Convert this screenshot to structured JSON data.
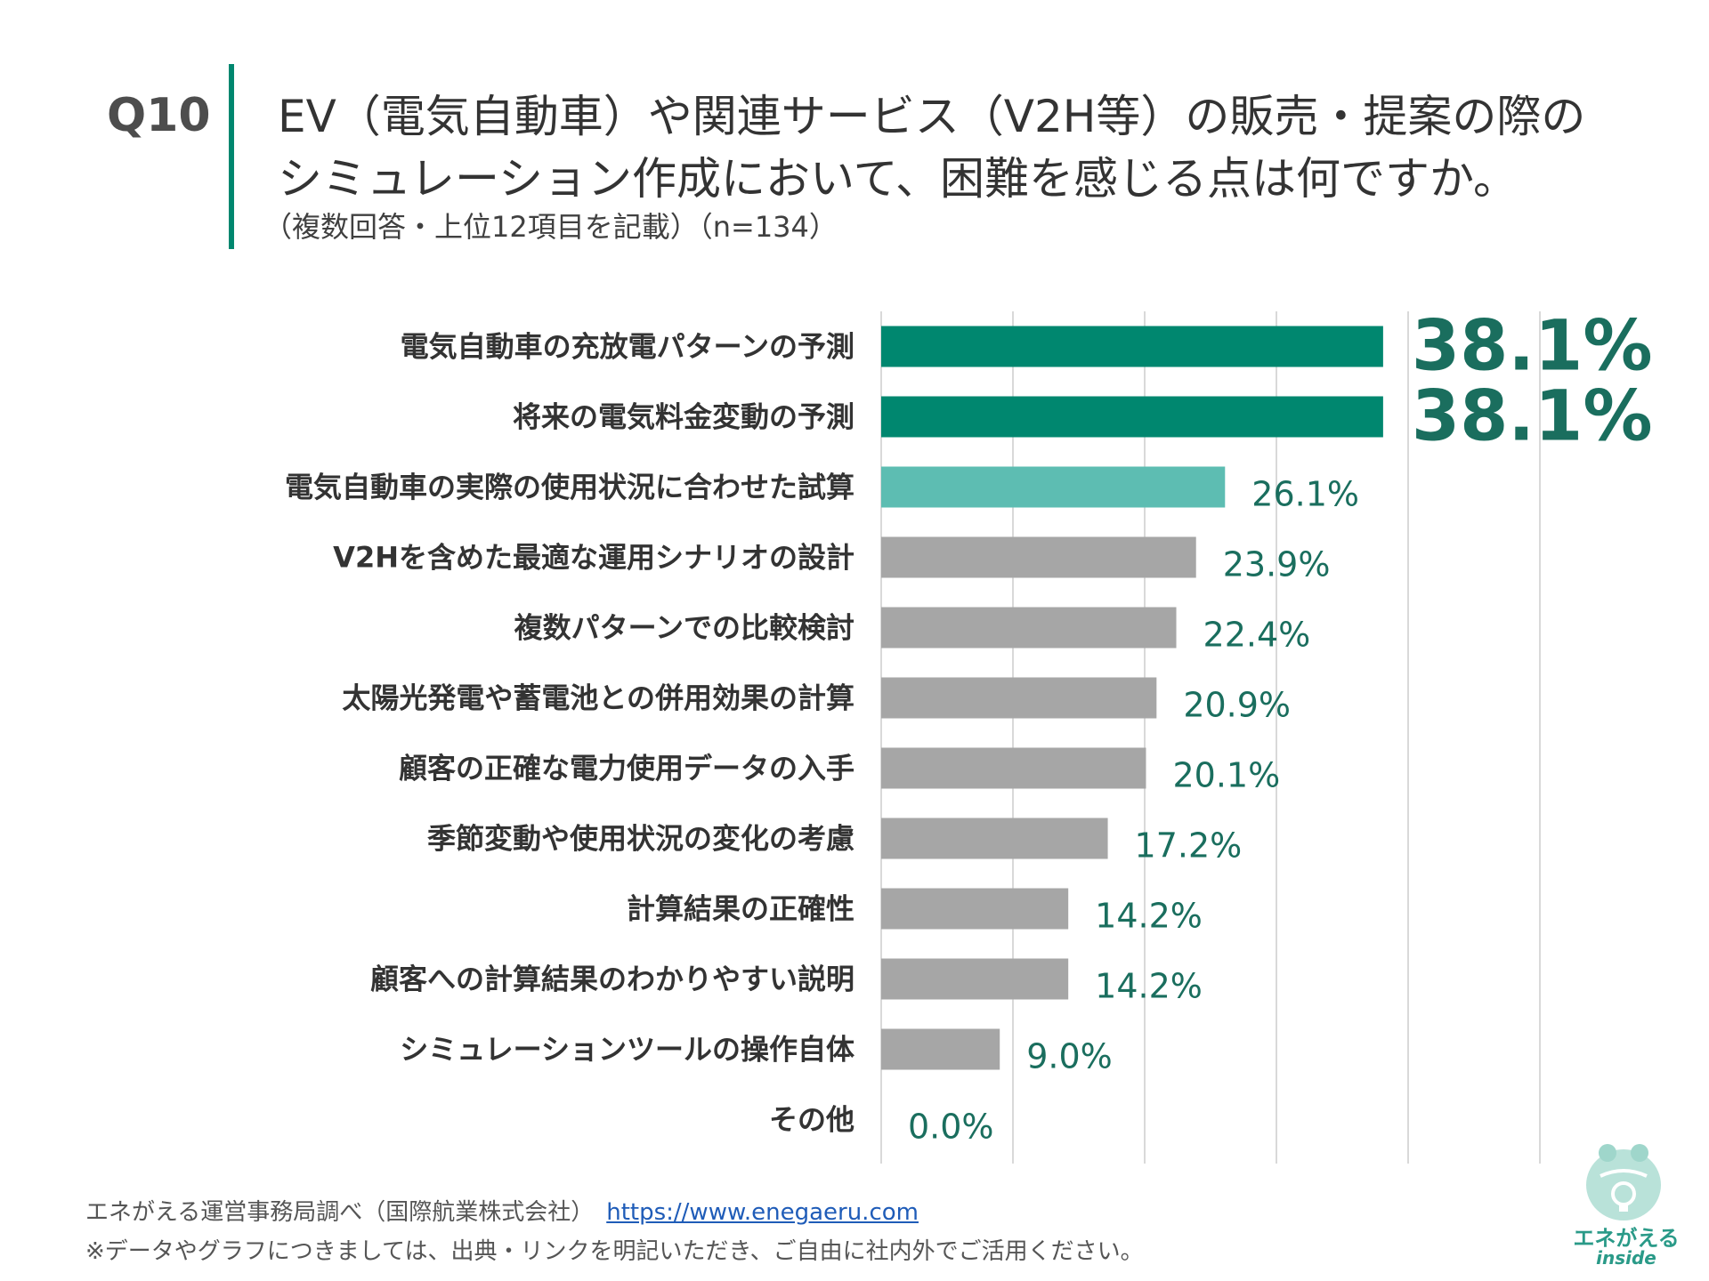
{
  "question": {
    "number": "Q10",
    "title_line1": "EV（電気自動車）や関連サービス（V2H等）の販売・提案の際の",
    "title_line2": "シミュレーション作成において、困難を感じる点は何ですか。",
    "subtitle": "（複数回答・上位12項目を記載）（n=134）"
  },
  "chart_data": {
    "type": "bar",
    "orientation": "horizontal",
    "categories": [
      "電気自動車の充放電パターンの予測",
      "将来の電気料金変動の予測",
      "電気自動車の実際の使用状況に合わせた試算",
      "V2Hを含めた最適な運用シナリオの設計",
      "複数パターンでの比較検討",
      "太陽光発電や蓄電池との併用効果の計算",
      "顧客の正確な電力使用データの入手",
      "季節変動や使用状況の変化の考慮",
      "計算結果の正確性",
      "顧客への計算結果のわかりやすい説明",
      "シミュレーションツールの操作自体",
      "その他"
    ],
    "values": [
      38.1,
      38.1,
      26.1,
      23.9,
      22.4,
      20.9,
      20.1,
      17.2,
      14.2,
      14.2,
      9.0,
      0.0
    ],
    "value_labels": [
      "38.1%",
      "38.1%",
      "26.1%",
      "23.9%",
      "22.4%",
      "20.9%",
      "20.1%",
      "17.2%",
      "14.2%",
      "14.2%",
      "9.0%",
      "0.0%"
    ],
    "xlim": [
      0,
      50
    ],
    "grid": true,
    "colors": {
      "top": "#00876f",
      "second": "#5dbdb2",
      "other": "#a6a6a6",
      "label": "#1a6e5e",
      "gridline": "#d9d9d9"
    }
  },
  "footer": {
    "source": "エネがえる運営事務局調べ（国際航業株式会社）",
    "url": "https://www.enegaeru.com",
    "note": "※データやグラフにつきましては、出典・リンクを明記いただき、ご自由に社内外でご活用ください。"
  },
  "logo": {
    "name": "エネがえる",
    "sub": "inside"
  }
}
